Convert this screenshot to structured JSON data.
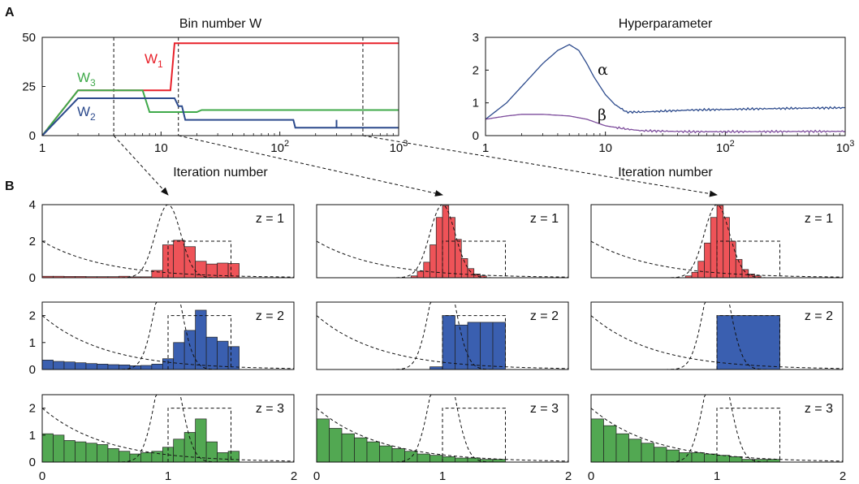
{
  "panel_labels": {
    "a": "A",
    "b": "B"
  },
  "colors": {
    "red": "#e8212a",
    "blue": "#2c4a8c",
    "green": "#3fa94a",
    "purple": "#7d4c9c",
    "bar_red": "#ee5358",
    "bar_blue": "#3a5fb0",
    "bar_green": "#52a852"
  },
  "chart_data": [
    {
      "id": "bin-number",
      "type": "line",
      "title": "Bin number W",
      "xlabel": "Iteration number",
      "ylabel": "",
      "xscale": "log",
      "xlim": [
        1,
        1000
      ],
      "ylim": [
        0,
        50
      ],
      "yticks": [
        "0",
        "25",
        "50"
      ],
      "xticks": [
        {
          "base": "1",
          "exp": ""
        },
        {
          "base": "10",
          "exp": ""
        },
        {
          "base": "10",
          "exp": "2"
        },
        {
          "base": "10",
          "exp": "3"
        }
      ],
      "series": [
        {
          "name": "W",
          "sub": "1",
          "color": "#e8212a",
          "x": [
            1,
            2,
            12,
            13,
            14,
            1000
          ],
          "y": [
            0,
            23,
            23,
            47,
            47,
            47
          ]
        },
        {
          "name": "W",
          "sub": "3",
          "color": "#3fa94a",
          "x": [
            1,
            2,
            7,
            8,
            20,
            22,
            1000
          ],
          "y": [
            0,
            23,
            23,
            12,
            12,
            13,
            13
          ]
        },
        {
          "name": "W",
          "sub": "2",
          "color": "#2c4a8c",
          "x": [
            1,
            2,
            13,
            14,
            15,
            16,
            130,
            135,
            1000
          ],
          "y": [
            0,
            19,
            19,
            15,
            15,
            8,
            8,
            4,
            4
          ]
        }
      ],
      "markers": [
        4,
        14,
        500
      ]
    },
    {
      "id": "hyperparameter",
      "type": "line",
      "title": "Hyperparameter",
      "xlabel": "Iteration number",
      "ylabel": "",
      "xscale": "log",
      "xlim": [
        1,
        1000
      ],
      "ylim": [
        0,
        3
      ],
      "yticks": [
        "0",
        "1",
        "2",
        "3"
      ],
      "xticks": [
        {
          "base": "1",
          "exp": ""
        },
        {
          "base": "10",
          "exp": ""
        },
        {
          "base": "10",
          "exp": "2"
        },
        {
          "base": "10",
          "exp": "3"
        }
      ],
      "series": [
        {
          "name": "α",
          "color": "#2c4a8c",
          "x": [
            1,
            1.5,
            2,
            3,
            4,
            5,
            6,
            7,
            8,
            10,
            12,
            15,
            20,
            50,
            100,
            200,
            500,
            1000
          ],
          "y": [
            0.5,
            1.0,
            1.5,
            2.2,
            2.6,
            2.78,
            2.6,
            2.2,
            1.8,
            1.25,
            0.95,
            0.72,
            0.72,
            0.78,
            0.8,
            0.82,
            0.84,
            0.85
          ]
        },
        {
          "name": "β",
          "color": "#7d4c9c",
          "x": [
            1,
            1.5,
            2,
            3,
            5,
            7,
            10,
            15,
            20,
            50,
            100,
            1000
          ],
          "y": [
            0.5,
            0.6,
            0.65,
            0.65,
            0.6,
            0.5,
            0.3,
            0.2,
            0.15,
            0.12,
            0.12,
            0.13
          ]
        }
      ]
    },
    {
      "id": "histograms",
      "type": "bar",
      "xlim": [
        0,
        2
      ],
      "xticks": [
        "0",
        "1",
        "2"
      ],
      "row_labels": [
        "z = 1",
        "z = 2",
        "z = 3"
      ],
      "row_ylims": [
        [
          0,
          4
        ],
        [
          0,
          2.5
        ],
        [
          0,
          2.5
        ]
      ],
      "row_yticks": [
        [
          "0",
          "2",
          "4"
        ],
        [
          "0",
          "1",
          "2"
        ],
        [
          "0",
          "1",
          "2"
        ]
      ],
      "row_colors": [
        "#ee5358",
        "#3a5fb0",
        "#52a852"
      ],
      "reference_curves": {
        "gaussian": {
          "mean": 1,
          "sd": 0.1,
          "peak": 4
        },
        "exponential": {
          "rate": 2,
          "peak": 2
        },
        "uniform": {
          "low": 1,
          "high": 1.5,
          "height": 2
        }
      },
      "columns": [
        {
          "rows": [
            {
              "edges": [
                0,
                0.087,
                0.174,
                0.261,
                0.348,
                0.435,
                0.522,
                0.609,
                0.696,
                0.783,
                0.87,
                0.957,
                1.043,
                1.13,
                1.217,
                1.304,
                1.391,
                1.478,
                1.565,
                1.652,
                1.739,
                1.826,
                1.913,
                2.0
              ],
              "values": [
                0.08,
                0.08,
                0.07,
                0.07,
                0.06,
                0.06,
                0.06,
                0.08,
                0.05,
                0.05,
                0.4,
                1.8,
                2.05,
                1.7,
                0.9,
                0.75,
                0.8,
                0.78,
                0,
                0,
                0,
                0,
                0
              ]
            },
            {
              "edges": [
                0,
                0.087,
                0.174,
                0.261,
                0.348,
                0.435,
                0.522,
                0.609,
                0.696,
                0.783,
                0.87,
                0.957,
                1.043,
                1.13,
                1.217,
                1.304,
                1.391,
                1.478,
                1.565,
                1.652,
                1.739,
                1.826,
                1.913,
                2.0
              ],
              "values": [
                0.35,
                0.3,
                0.28,
                0.25,
                0.22,
                0.2,
                0.18,
                0.17,
                0.14,
                0.15,
                0.2,
                0.4,
                1.0,
                1.45,
                2.2,
                1.2,
                1.05,
                0.85,
                0,
                0,
                0,
                0,
                0
              ]
            },
            {
              "edges": [
                0,
                0.087,
                0.174,
                0.261,
                0.348,
                0.435,
                0.522,
                0.609,
                0.696,
                0.783,
                0.87,
                0.957,
                1.043,
                1.13,
                1.217,
                1.304,
                1.391,
                1.478,
                1.565,
                1.652,
                1.739,
                1.826,
                1.913,
                2.0
              ],
              "values": [
                1.05,
                1.0,
                0.8,
                0.75,
                0.7,
                0.65,
                0.5,
                0.4,
                0.3,
                0.35,
                0.4,
                0.55,
                0.85,
                1.1,
                1.6,
                0.75,
                0.35,
                0.4,
                0,
                0,
                0,
                0,
                0
              ]
            }
          ]
        },
        {
          "rows": [
            {
              "edges": [
                0.75,
                0.8,
                0.85,
                0.9,
                0.95,
                1.0,
                1.05,
                1.1,
                1.15,
                1.2,
                1.25,
                1.3,
                1.35,
                1.4,
                1.45,
                1.5
              ],
              "values": [
                0.1,
                0.35,
                0.85,
                1.8,
                3.3,
                3.95,
                3.3,
                2.1,
                1.05,
                0.5,
                0.2,
                0.1,
                0,
                0,
                0
              ]
            },
            {
              "edges": [
                0.9,
                1.0,
                1.1,
                1.2,
                1.3,
                1.4,
                1.5
              ],
              "values": [
                0.1,
                2.0,
                1.65,
                1.75,
                1.75,
                1.75
              ]
            },
            {
              "edges": [
                0,
                0.1,
                0.2,
                0.3,
                0.4,
                0.5,
                0.6,
                0.7,
                0.8,
                0.9,
                1.0,
                1.1,
                1.2,
                1.3,
                1.4,
                1.5
              ],
              "values": [
                1.6,
                1.25,
                1.05,
                0.9,
                0.75,
                0.6,
                0.5,
                0.4,
                0.3,
                0.25,
                0.2,
                0.15,
                0.15,
                0.1,
                0.1
              ]
            }
          ]
        },
        {
          "rows": [
            {
              "edges": [
                0.75,
                0.8,
                0.85,
                0.9,
                0.95,
                1.0,
                1.05,
                1.1,
                1.15,
                1.2,
                1.25,
                1.3,
                1.35,
                1.4,
                1.45,
                1.5
              ],
              "values": [
                0.1,
                0.3,
                0.9,
                1.9,
                3.3,
                3.95,
                3.3,
                2.0,
                1.0,
                0.45,
                0.2,
                0.1,
                0,
                0,
                0
              ]
            },
            {
              "edges": [
                1.0,
                1.5
              ],
              "values": [
                2.0
              ]
            },
            {
              "edges": [
                0,
                0.1,
                0.2,
                0.3,
                0.4,
                0.5,
                0.6,
                0.7,
                0.8,
                0.9,
                1.0,
                1.1,
                1.2,
                1.3,
                1.4,
                1.5
              ],
              "values": [
                1.6,
                1.35,
                1.05,
                0.85,
                0.7,
                0.55,
                0.45,
                0.35,
                0.35,
                0.3,
                0.25,
                0.2,
                0.1,
                0.1,
                0.1
              ]
            }
          ]
        }
      ],
      "arrow_targets": [
        1,
        1,
        1
      ]
    }
  ]
}
